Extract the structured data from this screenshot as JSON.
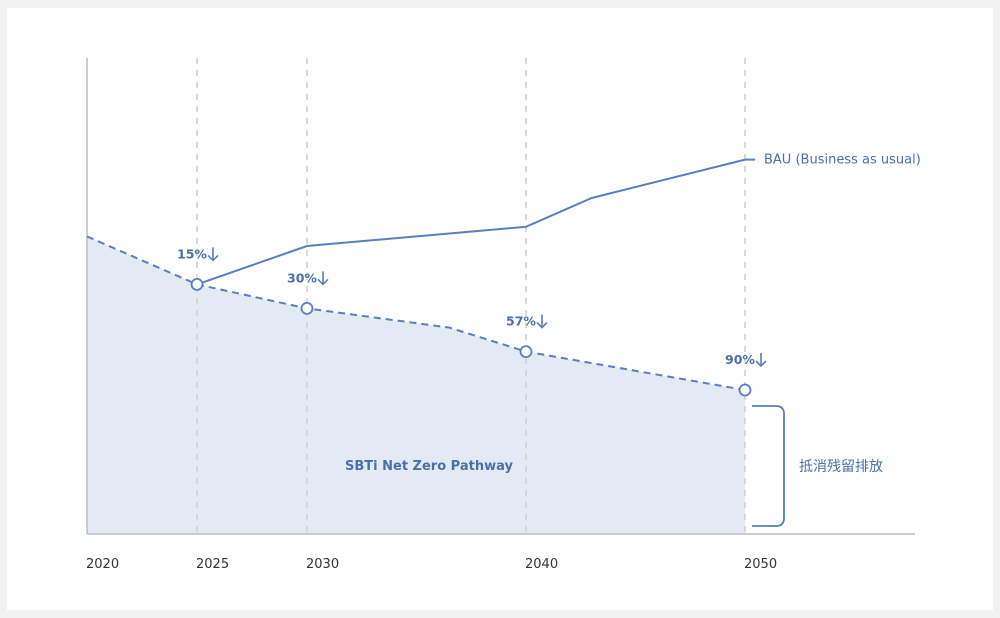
{
  "chart_data": {
    "type": "line",
    "title": "",
    "xlabel": "",
    "ylabel": "",
    "x_ticks": [
      "2020",
      "2025",
      "2030",
      "2040",
      "2050"
    ],
    "series": [
      {
        "name": "BAU (Business as usual)",
        "style": "solid",
        "points": [
          [
            2025,
            52
          ],
          [
            2030,
            60
          ],
          [
            2040,
            64
          ],
          [
            2043,
            70
          ],
          [
            2050,
            78
          ]
        ]
      },
      {
        "name": "SBTi Net Zero Pathway",
        "style": "dashed-filled",
        "points": [
          [
            2020,
            62
          ],
          [
            2025,
            52
          ],
          [
            2030,
            47
          ],
          [
            2036.5,
            43
          ],
          [
            2040,
            38
          ],
          [
            2050,
            30
          ]
        ]
      }
    ],
    "markers": [
      {
        "x": 2025,
        "y": 52,
        "label": "15%"
      },
      {
        "x": 2030,
        "y": 47,
        "label": "30%"
      },
      {
        "x": 2040,
        "y": 38,
        "label": "57%"
      },
      {
        "x": 2050,
        "y": 30,
        "label": "90%"
      }
    ],
    "vertical_guides": [
      2025,
      2030,
      2040,
      2050
    ],
    "bracket": {
      "label": "抵消残留排放",
      "from": 0,
      "to": 30
    },
    "ylim": [
      0,
      85
    ],
    "colors": {
      "line": "#5a7ebf",
      "area": "#e3eaf4",
      "guide": "#d0d0d0",
      "axis": "#bdbdbd"
    }
  }
}
